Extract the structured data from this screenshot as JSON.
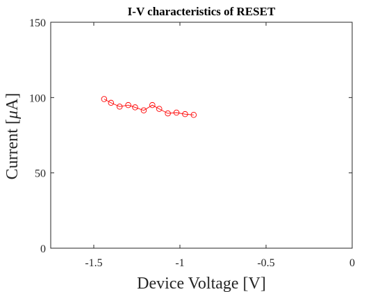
{
  "chart_data": {
    "type": "line",
    "title": "I-V characteristics of RESET",
    "xlabel": "Device Voltage [V]",
    "ylabel_prefix": "Current [",
    "ylabel_unit": "μ",
    "ylabel_suffix": "A]",
    "xlim": [
      -1.75,
      0
    ],
    "ylim": [
      0,
      150
    ],
    "xticks": [
      -1.5,
      -1,
      -0.5,
      0
    ],
    "xtick_labels": [
      "-1.5",
      "-1",
      "-0.5",
      "0"
    ],
    "yticks": [
      0,
      50,
      100,
      150
    ],
    "ytick_labels": [
      "0",
      "50",
      "100",
      "150"
    ],
    "grid": false,
    "series": [
      {
        "color": "#ff0000",
        "marker": "circle-open",
        "x": [
          -1.44,
          -1.4,
          -1.35,
          -1.3,
          -1.26,
          -1.21,
          -1.16,
          -1.12,
          -1.07,
          -1.02,
          -0.97,
          -0.92
        ],
        "y": [
          99,
          96.5,
          94,
          95,
          93.5,
          91.5,
          95,
          92.5,
          89.5,
          90,
          89,
          88.5
        ]
      }
    ]
  }
}
